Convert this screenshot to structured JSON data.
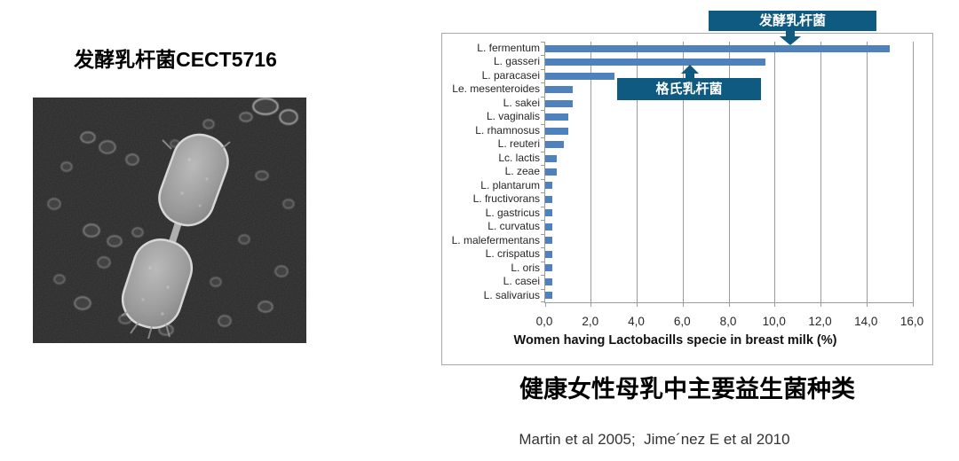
{
  "slide": {
    "left_title": "发酵乳杆菌CECT5716",
    "bottom_title": "健康女性母乳中主要益生菌种类",
    "citation": "Martin et al 2005;  Jime´nez E et al 2010"
  },
  "chart_data": {
    "type": "bar",
    "orientation": "horizontal",
    "xlabel": "Women having Lactobacills specie in breast milk (%)",
    "xlim": [
      0,
      16
    ],
    "xticks": [
      "0,0",
      "2,0",
      "4,0",
      "6,0",
      "8,0",
      "10,0",
      "12,0",
      "14,0",
      "16,0"
    ],
    "grid": true,
    "legend": "none",
    "categories": [
      "L. fermentum",
      "L. gasseri",
      "L. paracasei",
      "Le. mesenteroides",
      "L. sakei",
      "L. vaginalis",
      "L. rhamnosus",
      "L. reuteri",
      "Lc. lactis",
      "L. zeae",
      "L. plantarum",
      "L. fructivorans",
      "L. gastricus",
      "L. curvatus",
      "L. malefermentans",
      "L. crispatus",
      "L. oris",
      "L. casei",
      "L. salivarius"
    ],
    "values": [
      15.0,
      9.6,
      3.0,
      1.2,
      1.2,
      1.0,
      1.0,
      0.8,
      0.5,
      0.5,
      0.3,
      0.3,
      0.3,
      0.3,
      0.3,
      0.3,
      0.3,
      0.3,
      0.3
    ],
    "annotations": [
      {
        "label": "发酵乳杆菌",
        "target": "L. fermentum",
        "arrow": "down"
      },
      {
        "label": "格氏乳杆菌",
        "target": "L. gasseri",
        "arrow": "up"
      }
    ],
    "colors": {
      "bar": "#4F81BD",
      "callout": "#0E5A80",
      "grid": "#9b9b9b"
    }
  }
}
